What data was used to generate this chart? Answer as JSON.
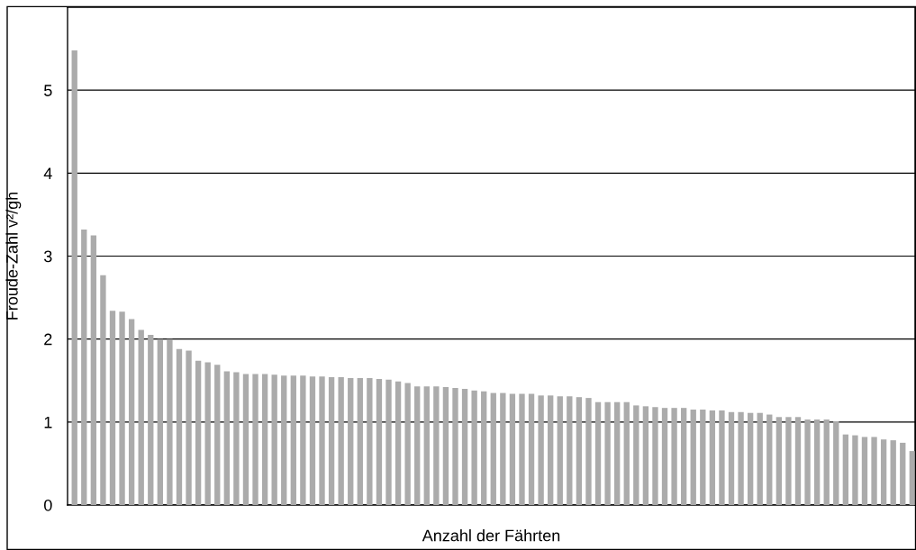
{
  "chart_data": {
    "type": "bar",
    "xlabel": "Anzahl der Fährten",
    "ylabel": "Froude-Zahl v²/gh",
    "color": "#ababab",
    "categories": [
      null,
      null,
      null,
      null,
      null,
      null,
      null,
      null,
      null,
      null,
      null,
      null,
      null,
      null,
      null,
      null,
      null,
      null,
      null,
      null,
      null,
      null,
      null,
      null,
      null,
      null,
      null,
      null,
      null,
      null,
      null,
      null,
      null,
      null,
      null,
      null,
      null,
      null,
      null,
      null,
      null,
      null,
      null,
      null,
      null,
      null,
      null,
      null,
      null,
      null,
      null,
      null,
      null,
      null,
      null,
      null,
      null,
      null,
      null,
      null,
      null,
      null,
      null,
      null,
      null,
      null,
      null,
      null,
      null,
      null,
      null,
      null,
      null,
      null,
      null,
      null,
      null,
      null,
      null,
      null,
      null,
      null,
      null,
      null,
      null,
      null,
      null,
      null,
      null
    ],
    "values": [
      5.48,
      3.32,
      3.25,
      2.77,
      2.34,
      2.33,
      2.24,
      2.11,
      2.05,
      2.0,
      2.0,
      1.88,
      1.86,
      1.74,
      1.72,
      1.69,
      1.61,
      1.6,
      1.58,
      1.58,
      1.58,
      1.57,
      1.56,
      1.56,
      1.56,
      1.55,
      1.55,
      1.54,
      1.54,
      1.53,
      1.53,
      1.53,
      1.52,
      1.51,
      1.49,
      1.47,
      1.43,
      1.43,
      1.43,
      1.42,
      1.41,
      1.4,
      1.38,
      1.37,
      1.35,
      1.35,
      1.34,
      1.34,
      1.34,
      1.32,
      1.32,
      1.31,
      1.31,
      1.3,
      1.29,
      1.24,
      1.24,
      1.24,
      1.24,
      1.2,
      1.19,
      1.18,
      1.17,
      1.17,
      1.17,
      1.15,
      1.15,
      1.14,
      1.14,
      1.12,
      1.12,
      1.11,
      1.11,
      1.09,
      1.06,
      1.06,
      1.06,
      1.03,
      1.03,
      1.03,
      1.01,
      0.85,
      0.84,
      0.82,
      0.82,
      0.79,
      0.78,
      0.75,
      0.65
    ],
    "ylim": [
      0,
      6
    ],
    "yticks": [
      0,
      1,
      2,
      3,
      4,
      5
    ],
    "grid": "y"
  }
}
